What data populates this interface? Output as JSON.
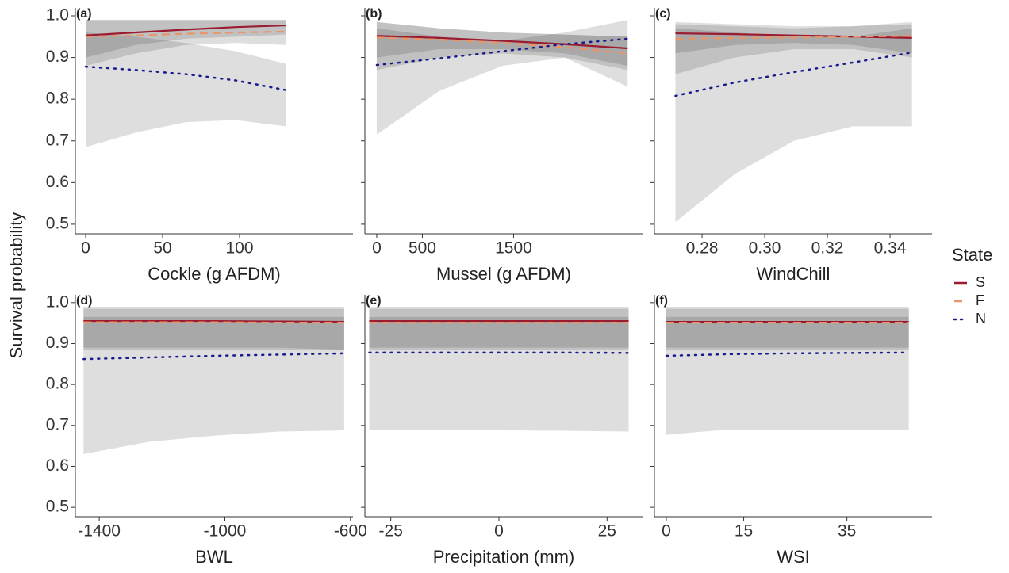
{
  "chart_data": [
    {
      "type": "line",
      "label": "(a)",
      "xlabel": "Cockle (g AFDM)",
      "ylabel": "Survival probability",
      "legend_title": "State",
      "x": [
        0,
        32.5,
        65,
        97.5,
        130
      ],
      "xlim": [
        -6.7,
        173.7
      ],
      "xticks": [
        0,
        50,
        100
      ],
      "ylim": [
        0.477,
        1.019
      ],
      "yticks": [
        0.5,
        0.6,
        0.7,
        0.8,
        0.9,
        {
          "value": 1,
          "label": "1.0"
        }
      ],
      "series": [
        {
          "name": "S",
          "color": "#9b1b30",
          "values": [
            0.953,
            0.96,
            0.967,
            0.973,
            0.977
          ],
          "lower": [
            0.9,
            0.93,
            0.945,
            0.95,
            0.955
          ],
          "upper": [
            0.99,
            0.99,
            0.99,
            0.99,
            0.99
          ]
        },
        {
          "name": "F",
          "color": "#e8956b",
          "values": [
            0.95,
            0.953,
            0.957,
            0.96,
            0.962
          ],
          "lower": [
            0.88,
            0.91,
            0.93,
            0.935,
            0.93
          ],
          "upper": [
            0.99,
            0.99,
            0.99,
            0.99,
            0.99
          ]
        },
        {
          "name": "N",
          "color": "#1a1a8c",
          "values": [
            0.878,
            0.87,
            0.86,
            0.845,
            0.822
          ],
          "lower": [
            0.685,
            0.72,
            0.745,
            0.75,
            0.735
          ],
          "upper": [
            0.96,
            0.95,
            0.935,
            0.915,
            0.885
          ]
        }
      ]
    },
    {
      "type": "line",
      "label": "(b)",
      "xlabel": "Mussel (g AFDM)",
      "x": [
        0,
        687.5,
        1375,
        2062.5,
        2750
      ],
      "xlim": [
        -130,
        2913
      ],
      "xticks": [
        0,
        500,
        1500
      ],
      "ylim": [
        0.477,
        1.019
      ],
      "yticks": [
        0.5,
        0.6,
        0.7,
        0.8,
        0.9,
        1
      ],
      "series": [
        {
          "values": [
            0.952,
            0.947,
            0.94,
            0.932,
            0.922
          ],
          "lower": [
            0.9,
            0.92,
            0.92,
            0.91,
            0.88
          ],
          "upper": [
            0.985,
            0.97,
            0.96,
            0.955,
            0.95
          ]
        },
        {
          "values": [
            0.948,
            0.943,
            0.935,
            0.925,
            0.91
          ],
          "lower": [
            0.87,
            0.9,
            0.91,
            0.9,
            0.87
          ],
          "upper": [
            0.985,
            0.97,
            0.96,
            0.955,
            0.95
          ]
        },
        {
          "values": [
            0.882,
            0.898,
            0.915,
            0.932,
            0.945
          ],
          "lower": [
            0.715,
            0.82,
            0.88,
            0.9,
            0.83
          ],
          "upper": [
            0.97,
            0.95,
            0.94,
            0.96,
            0.99
          ]
        }
      ]
    },
    {
      "type": "line",
      "label": "(c)",
      "xlabel": "WindChill",
      "x": [
        0.2715,
        0.2904,
        0.3093,
        0.3282,
        0.347
      ],
      "xlim": [
        0.2648,
        0.3534
      ],
      "xticks": [
        {
          "value": 0.28,
          "label": "0.28"
        },
        {
          "value": 0.3,
          "label": "0.30"
        },
        {
          "value": 0.32,
          "label": "0.32"
        },
        {
          "value": 0.34,
          "label": "0.34"
        }
      ],
      "ylim": [
        0.477,
        1.019
      ],
      "yticks": [
        0.5,
        0.6,
        0.7,
        0.8,
        0.9,
        1
      ],
      "series": [
        {
          "values": [
            0.958,
            0.956,
            0.953,
            0.95,
            0.947
          ],
          "lower": [
            0.91,
            0.93,
            0.935,
            0.93,
            0.91
          ],
          "upper": [
            0.98,
            0.975,
            0.97,
            0.975,
            0.98
          ]
        },
        {
          "values": [
            0.945,
            0.947,
            0.948,
            0.95,
            0.952
          ],
          "lower": [
            0.86,
            0.9,
            0.92,
            0.92,
            0.9
          ],
          "upper": [
            0.985,
            0.98,
            0.975,
            0.975,
            0.985
          ]
        },
        {
          "values": [
            0.808,
            0.84,
            0.865,
            0.888,
            0.912
          ],
          "lower": [
            0.505,
            0.62,
            0.7,
            0.735,
            0.735
          ],
          "upper": [
            0.97,
            0.96,
            0.95,
            0.95,
            0.97
          ]
        }
      ]
    },
    {
      "type": "line",
      "label": "(d)",
      "xlabel": "BWL",
      "x": [
        -1450,
        -1242.5,
        -1035,
        -827.5,
        -620
      ],
      "xlim": [
        -1476,
        -592
      ],
      "xticks": [
        -1400,
        -1000,
        -600
      ],
      "ylim": [
        0.477,
        1.019
      ],
      "yticks": [
        0.5,
        0.6,
        0.7,
        0.8,
        0.9,
        {
          "value": 1,
          "label": "1.0"
        }
      ],
      "series": [
        {
          "values": [
            0.955,
            0.955,
            0.955,
            0.954,
            0.953
          ],
          "lower": [
            0.89,
            0.89,
            0.89,
            0.89,
            0.885
          ],
          "upper": [
            0.99,
            0.99,
            0.99,
            0.99,
            0.99
          ]
        },
        {
          "values": [
            0.952,
            0.952,
            0.952,
            0.951,
            0.951
          ],
          "lower": [
            0.885,
            0.885,
            0.885,
            0.885,
            0.885
          ],
          "upper": [
            0.985,
            0.985,
            0.985,
            0.985,
            0.985
          ]
        },
        {
          "values": [
            0.862,
            0.866,
            0.87,
            0.873,
            0.876
          ],
          "lower": [
            0.63,
            0.66,
            0.675,
            0.685,
            0.688
          ],
          "upper": [
            0.965,
            0.965,
            0.965,
            0.965,
            0.965
          ]
        }
      ]
    },
    {
      "type": "line",
      "label": "(e)",
      "xlabel": "Precipitation (mm)",
      "x": [
        -30,
        -15,
        0,
        15,
        30
      ],
      "xlim": [
        -31,
        33.2
      ],
      "xticks": [
        -25,
        0,
        25
      ],
      "ylim": [
        0.477,
        1.019
      ],
      "yticks": [
        0.5,
        0.6,
        0.7,
        0.8,
        0.9,
        1
      ],
      "series": [
        {
          "values": [
            0.955,
            0.955,
            0.955,
            0.955,
            0.955
          ],
          "lower": [
            0.89,
            0.89,
            0.89,
            0.89,
            0.89
          ],
          "upper": [
            0.99,
            0.99,
            0.99,
            0.99,
            0.99
          ]
        },
        {
          "values": [
            0.951,
            0.951,
            0.951,
            0.951,
            0.951
          ],
          "lower": [
            0.885,
            0.885,
            0.885,
            0.885,
            0.885
          ],
          "upper": [
            0.985,
            0.985,
            0.985,
            0.985,
            0.985
          ]
        },
        {
          "values": [
            0.878,
            0.878,
            0.878,
            0.878,
            0.877
          ],
          "lower": [
            0.69,
            0.69,
            0.688,
            0.687,
            0.685
          ],
          "upper": [
            0.965,
            0.965,
            0.965,
            0.965,
            0.965
          ]
        }
      ]
    },
    {
      "type": "line",
      "label": "(f)",
      "xlabel": "WSI",
      "x": [
        0,
        11.75,
        23.5,
        35.25,
        47
      ],
      "xlim": [
        -2.3,
        51.5
      ],
      "xticks": [
        0,
        15,
        35
      ],
      "ylim": [
        0.477,
        1.019
      ],
      "yticks": [
        0.5,
        0.6,
        0.7,
        0.8,
        0.9,
        1
      ],
      "series": [
        {
          "values": [
            0.953,
            0.953,
            0.953,
            0.953,
            0.953
          ],
          "lower": [
            0.89,
            0.89,
            0.89,
            0.89,
            0.89
          ],
          "upper": [
            0.99,
            0.99,
            0.99,
            0.99,
            0.99
          ]
        },
        {
          "values": [
            0.951,
            0.951,
            0.951,
            0.951,
            0.951
          ],
          "lower": [
            0.885,
            0.885,
            0.885,
            0.885,
            0.885
          ],
          "upper": [
            0.985,
            0.985,
            0.985,
            0.985,
            0.985
          ]
        },
        {
          "values": [
            0.87,
            0.874,
            0.876,
            0.877,
            0.878
          ],
          "lower": [
            0.677,
            0.69,
            0.69,
            0.69,
            0.69
          ],
          "upper": [
            0.965,
            0.965,
            0.965,
            0.965,
            0.965
          ]
        }
      ]
    }
  ]
}
